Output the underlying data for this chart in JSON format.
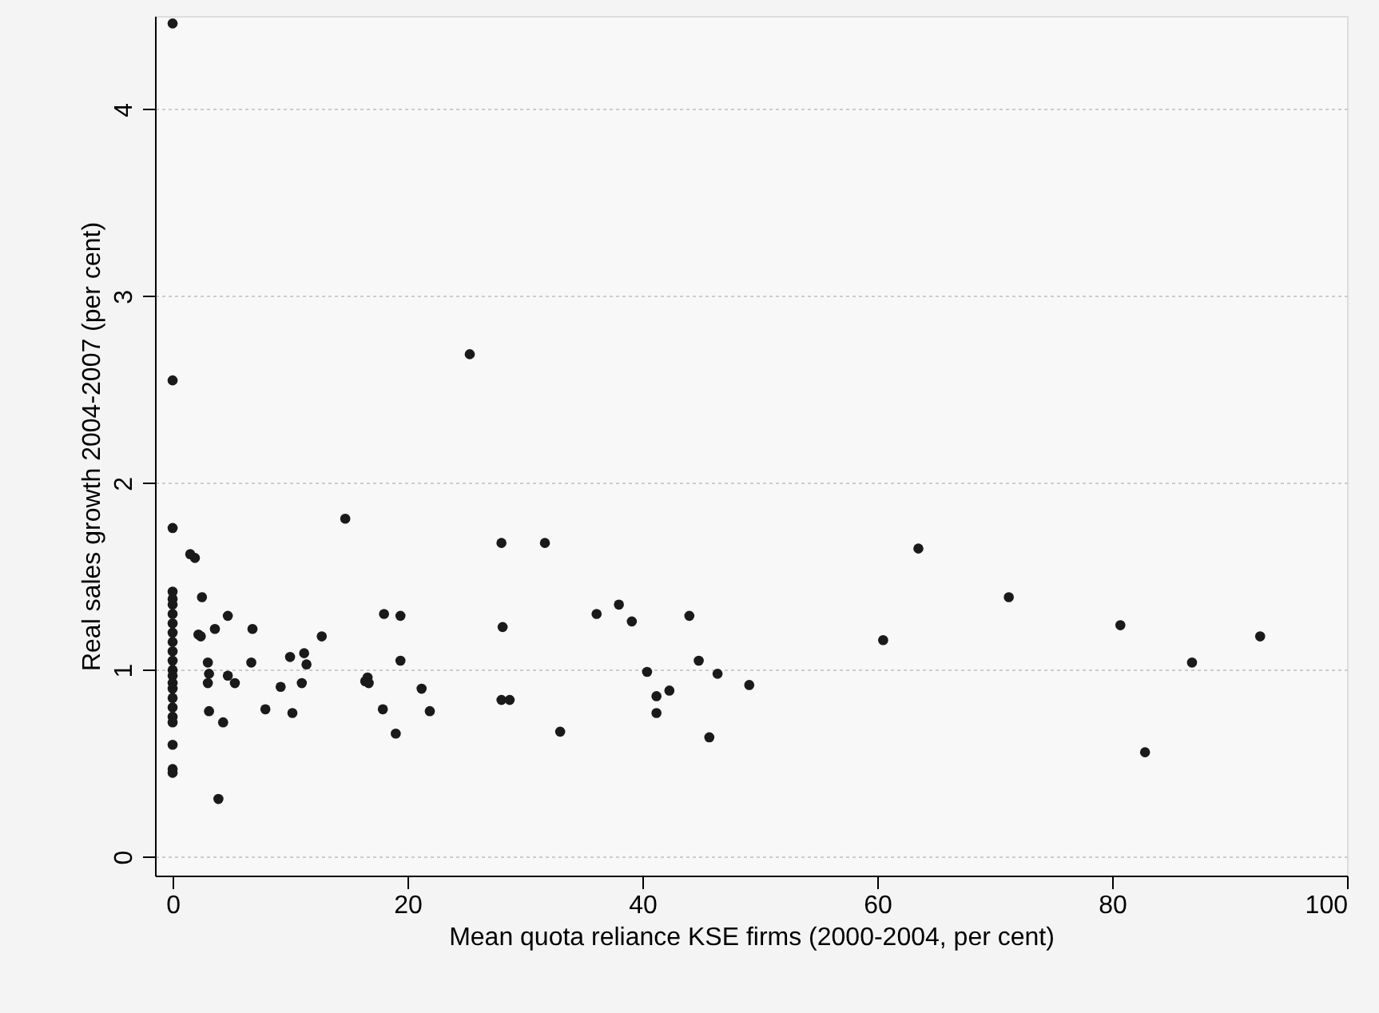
{
  "chart_data": {
    "type": "scatter",
    "xlabel": "Mean quota reliance KSE firms (2000-2004, per cent)",
    "ylabel": "Real sales growth 2004-2007 (per cent)",
    "x": [
      0,
      0,
      0,
      0,
      0,
      0,
      0,
      0,
      0,
      0,
      0,
      0,
      0,
      0,
      0,
      0,
      0,
      0,
      0,
      0,
      0,
      0,
      0,
      1.5,
      1.9,
      2.5,
      4.7,
      2.2,
      2.4,
      3.6,
      6.8,
      12.7,
      14.7,
      3.0,
      3.1,
      3.0,
      4.7,
      5.3,
      6.7,
      10.0,
      11.2,
      11.4,
      9.2,
      11.0,
      16.4,
      3.1,
      4.3,
      7.9,
      10.2,
      3.9,
      25.3,
      28.0,
      31.7,
      18.0,
      19.4,
      28.1,
      36.1,
      38.0,
      39.1,
      44.0,
      19.4,
      16.6,
      16.7,
      21.2,
      17.9,
      21.9,
      19.0,
      28.0,
      28.7,
      33.0,
      40.4,
      44.8,
      46.4,
      49.1,
      42.3,
      41.2,
      41.2,
      45.7,
      63.5,
      60.5,
      71.2,
      80.7,
      92.6,
      86.8,
      82.8
    ],
    "series": [
      {
        "color": "#1a1a1a",
        "values": [
          4.46,
          2.55,
          1.76,
          1.42,
          1.38,
          1.35,
          1.3,
          1.25,
          1.2,
          1.15,
          1.1,
          1.05,
          1.0,
          0.97,
          0.93,
          0.9,
          0.85,
          0.8,
          0.75,
          0.72,
          0.6,
          0.47,
          0.45,
          1.62,
          1.6,
          1.39,
          1.29,
          1.19,
          1.18,
          1.22,
          1.22,
          1.18,
          1.81,
          1.04,
          0.98,
          0.93,
          0.97,
          0.93,
          1.04,
          1.07,
          1.09,
          1.03,
          0.91,
          0.93,
          0.94,
          0.78,
          0.72,
          0.79,
          0.77,
          0.31,
          2.69,
          1.68,
          1.68,
          1.3,
          1.29,
          1.23,
          1.3,
          1.35,
          1.26,
          1.29,
          1.05,
          0.96,
          0.93,
          0.9,
          0.79,
          0.78,
          0.66,
          0.84,
          0.84,
          0.67,
          0.99,
          1.05,
          0.98,
          0.92,
          0.89,
          0.86,
          0.77,
          0.64,
          1.65,
          1.16,
          1.39,
          1.24,
          1.18,
          1.04,
          0.56
        ]
      }
    ],
    "xlim": [
      -1.5,
      100
    ],
    "xticks": [
      0,
      20,
      40,
      60,
      80,
      100
    ],
    "ylim": [
      -0.1,
      4.5
    ],
    "yticks": [
      0,
      1,
      2,
      3,
      4
    ],
    "grid": "y",
    "marker": "circle"
  }
}
